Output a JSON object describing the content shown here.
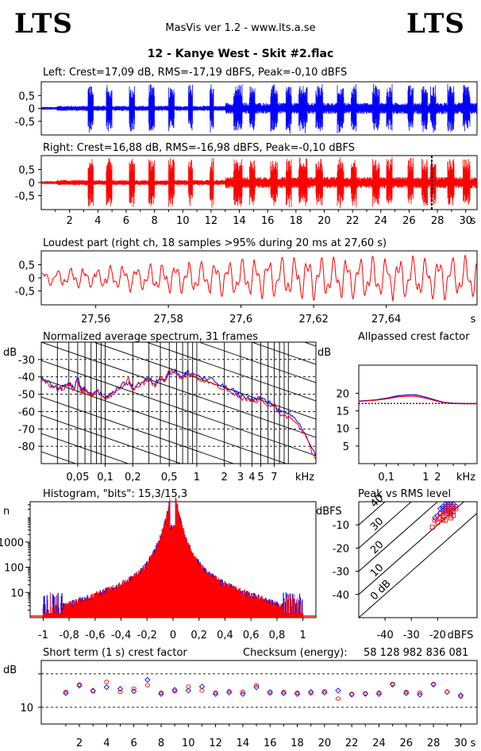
{
  "logo": {
    "left": "LTS",
    "right": "LTS"
  },
  "app_title": "MasVis ver 1.2 - www.lts.a.se",
  "file_title": "12 - Kanye West - Skit #2.flac",
  "colors": {
    "left": "#0000ff",
    "right": "#ff0000"
  },
  "chart_data": [
    {
      "id": "left_wave",
      "type": "line",
      "title": "Left: Crest=17,09 dB, RMS=-17,19 dBFS, Peak=-0,10 dBFS",
      "yticks": [
        "0,5",
        "0",
        "-0,5"
      ],
      "ylim": [
        -1,
        1
      ],
      "color": "#0000ff",
      "duration_s": 30.8
    },
    {
      "id": "right_wave",
      "type": "line",
      "title": "Right: Crest=16,88 dB, RMS=-16,98 dBFS, Peak=-0,10 dBFS",
      "yticks": [
        "0,5",
        "0",
        "-0,5"
      ],
      "ylim": [
        -1,
        1
      ],
      "color": "#ff0000",
      "marker_s": 27.6,
      "xticks": [
        "2",
        "4",
        "6",
        "8",
        "10",
        "12",
        "14",
        "16",
        "18",
        "20",
        "22",
        "24",
        "26",
        "28",
        "30",
        "s"
      ]
    },
    {
      "id": "loudest",
      "type": "line",
      "title": "Loudest part (right ch, 18 samples >95% during 20 ms at 27,60 s)",
      "yticks": [
        "0,5",
        "0",
        "-0,5"
      ],
      "ylim": [
        -1,
        1
      ],
      "xlim": [
        27.545,
        27.665
      ],
      "xticks": [
        "27,56",
        "27,58",
        "27,6",
        "27,62",
        "27,64",
        "s"
      ]
    },
    {
      "id": "spectrum",
      "type": "line",
      "title": "Normalized average spectrum, 31 frames",
      "ylabel": "dB",
      "yticks": [
        "-30",
        "-40",
        "-50",
        "-60",
        "-70",
        "-80"
      ],
      "ylim": [
        -90,
        -20
      ],
      "xticks": [
        "0,05",
        "0,1",
        "0,2",
        "0,5",
        "1",
        "2",
        "3",
        "4",
        "5",
        "7",
        "kHz"
      ],
      "xlim_khz": [
        0.02,
        20
      ],
      "series": [
        {
          "name": "left",
          "color": "#0000ff",
          "x": [
            0.02,
            0.025,
            0.03,
            0.035,
            0.04,
            0.045,
            0.05,
            0.055,
            0.06,
            0.07,
            0.08,
            0.1,
            0.12,
            0.15,
            0.18,
            0.2,
            0.25,
            0.3,
            0.35,
            0.4,
            0.45,
            0.5,
            0.6,
            0.7,
            0.8,
            1,
            1.2,
            1.5,
            2,
            2.5,
            3,
            4,
            5,
            6,
            7,
            8,
            10,
            12,
            15,
            20
          ],
          "y": [
            -41,
            -44,
            -47,
            -46,
            -43,
            -47,
            -40,
            -48,
            -47,
            -50,
            -48,
            -52,
            -49,
            -45,
            -43,
            -46,
            -43,
            -41,
            -44,
            -40,
            -42,
            -37,
            -37,
            -40,
            -37,
            -39,
            -41,
            -42,
            -46,
            -48,
            -51,
            -53,
            -52,
            -55,
            -56,
            -60,
            -62,
            -64,
            -72,
            -86
          ]
        },
        {
          "name": "right",
          "color": "#ff0000",
          "x": [
            0.02,
            0.025,
            0.03,
            0.035,
            0.04,
            0.045,
            0.05,
            0.055,
            0.06,
            0.07,
            0.08,
            0.1,
            0.12,
            0.15,
            0.18,
            0.2,
            0.25,
            0.3,
            0.35,
            0.4,
            0.45,
            0.5,
            0.6,
            0.7,
            0.8,
            1,
            1.2,
            1.5,
            2,
            2.5,
            3,
            4,
            5,
            6,
            7,
            8,
            10,
            12,
            15,
            20
          ],
          "y": [
            -42,
            -45,
            -46,
            -47,
            -44,
            -48,
            -42,
            -49,
            -48,
            -51,
            -47,
            -53,
            -50,
            -46,
            -42,
            -47,
            -44,
            -42,
            -45,
            -39,
            -43,
            -36,
            -38,
            -41,
            -38,
            -40,
            -42,
            -43,
            -47,
            -49,
            -52,
            -54,
            -53,
            -56,
            -57,
            -61,
            -63,
            -65,
            -73,
            -88
          ]
        }
      ]
    },
    {
      "id": "allpass",
      "type": "line",
      "title": "Allpassed crest factor",
      "ylabel": "dB",
      "yticks": [
        "20",
        "15",
        "10",
        "5"
      ],
      "ylim": [
        0,
        28
      ],
      "xticks": [
        "0,1",
        "1",
        "2",
        "kHz"
      ],
      "reference_db": 17.1,
      "series": [
        {
          "name": "left",
          "color": "#0000ff",
          "x": [
            0.02,
            0.05,
            0.1,
            0.2,
            0.4,
            0.6,
            1,
            2,
            3,
            5,
            10,
            20
          ],
          "y": [
            17.8,
            18.1,
            18.6,
            19.3,
            19.6,
            19.5,
            18.9,
            17.9,
            17.4,
            17.2,
            17.1,
            17.1
          ]
        },
        {
          "name": "right",
          "color": "#ff0000",
          "x": [
            0.02,
            0.05,
            0.1,
            0.2,
            0.4,
            0.6,
            1,
            2,
            3,
            5,
            10,
            20
          ],
          "y": [
            17.7,
            18.0,
            18.4,
            19.0,
            19.2,
            19.1,
            18.6,
            17.7,
            17.3,
            17.1,
            17.0,
            17.0
          ]
        }
      ]
    },
    {
      "id": "histogram",
      "type": "line",
      "title": "Histogram, \"bits\": 15,3/15,3",
      "ylabel": "n",
      "yticks": [
        "1000",
        "100",
        "10"
      ],
      "xticks": [
        "-1",
        "-0,8",
        "-0,6",
        "-0,4",
        "-0,2",
        "0",
        "0,2",
        "0,4",
        "0,6",
        "0,8",
        "1"
      ],
      "xlim": [
        -1.1,
        1.1
      ]
    },
    {
      "id": "peak_rms",
      "type": "scatter",
      "title": "Peak vs RMS level",
      "ylabel": "dBFS",
      "xlabel": "dBFS",
      "yticks": [
        "-10",
        "-20",
        "-30",
        "-40"
      ],
      "xticks": [
        "-40",
        "-30",
        "-20"
      ],
      "xlim": [
        -50,
        -5
      ],
      "ylim": [
        -50,
        0
      ],
      "diagonal_labels": [
        "40",
        "30",
        "20",
        "10",
        "0 dB"
      ],
      "series": [
        {
          "name": "left",
          "color": "#0000ff",
          "x": [
            -20,
            -18,
            -17,
            -16,
            -15,
            -14,
            -19,
            -17,
            -16,
            -15,
            -13,
            -18,
            -16,
            -14,
            -21,
            -17,
            -15,
            -16,
            -18,
            -19
          ],
          "y": [
            -6,
            -3,
            -2,
            -4,
            -1,
            -3,
            -5,
            -4,
            -2,
            -3,
            -2,
            -2,
            -1,
            -1,
            -7,
            -1,
            -5,
            -3,
            -4,
            -3
          ]
        },
        {
          "name": "right",
          "color": "#ff0000",
          "x": [
            -19,
            -17,
            -16,
            -15,
            -14,
            -20,
            -18,
            -16,
            -15,
            -13,
            -17,
            -14,
            -22,
            -18,
            -16,
            -15,
            -17,
            -19,
            -21,
            -14
          ],
          "y": [
            -7,
            -5,
            -3,
            -4,
            -2,
            -9,
            -6,
            -5,
            -6,
            -3,
            -8,
            -4,
            -11,
            -8,
            -2,
            -7,
            -4,
            -5,
            -8,
            -6
          ]
        }
      ]
    },
    {
      "id": "short_term",
      "type": "scatter",
      "title": "Short term (1 s) crest factor",
      "checksum_label": "Checksum (energy):",
      "checksum_value": "58 128 982 836 081",
      "ylabel": "dB",
      "yticks": [
        "10"
      ],
      "xticks": [
        "2",
        "4",
        "6",
        "8",
        "10",
        "12",
        "14",
        "16",
        "18",
        "20",
        "22",
        "24",
        "26",
        "28",
        "30",
        "s"
      ],
      "xlim": [
        -0.8,
        31.2
      ],
      "series": [
        {
          "name": "left",
          "color": "#0000ff",
          "x": [
            1,
            2,
            3,
            4,
            5,
            6,
            7,
            8,
            9,
            10,
            11,
            12,
            13,
            14,
            15,
            16,
            17,
            18,
            19,
            20,
            21,
            22,
            23,
            24,
            25,
            26,
            27,
            28,
            29,
            30
          ],
          "y": [
            14.2,
            16.5,
            15.0,
            16.0,
            15.5,
            14.8,
            18.2,
            14.0,
            15.2,
            15.0,
            16.2,
            14.0,
            14.4,
            14.0,
            16.0,
            14.6,
            14.2,
            14.0,
            14.6,
            14.4,
            15.0,
            13.8,
            14.0,
            14.0,
            16.8,
            14.2,
            13.8,
            16.8,
            14.6,
            13.6
          ]
        },
        {
          "name": "right",
          "color": "#ff0000",
          "x": [
            1,
            2,
            3,
            4,
            5,
            6,
            7,
            8,
            9,
            10,
            11,
            12,
            13,
            14,
            15,
            16,
            17,
            18,
            19,
            20,
            21,
            22,
            23,
            24,
            25,
            26,
            27,
            28,
            29,
            30
          ],
          "y": [
            14.6,
            16.8,
            14.8,
            17.6,
            14.6,
            15.6,
            16.6,
            14.4,
            14.8,
            16.2,
            15.0,
            14.4,
            14.8,
            14.6,
            16.6,
            14.2,
            14.6,
            14.4,
            14.2,
            14.8,
            12.6,
            14.0,
            14.2,
            14.4,
            17.0,
            14.6,
            14.4,
            17.0,
            14.6,
            13.2
          ]
        }
      ]
    }
  ]
}
